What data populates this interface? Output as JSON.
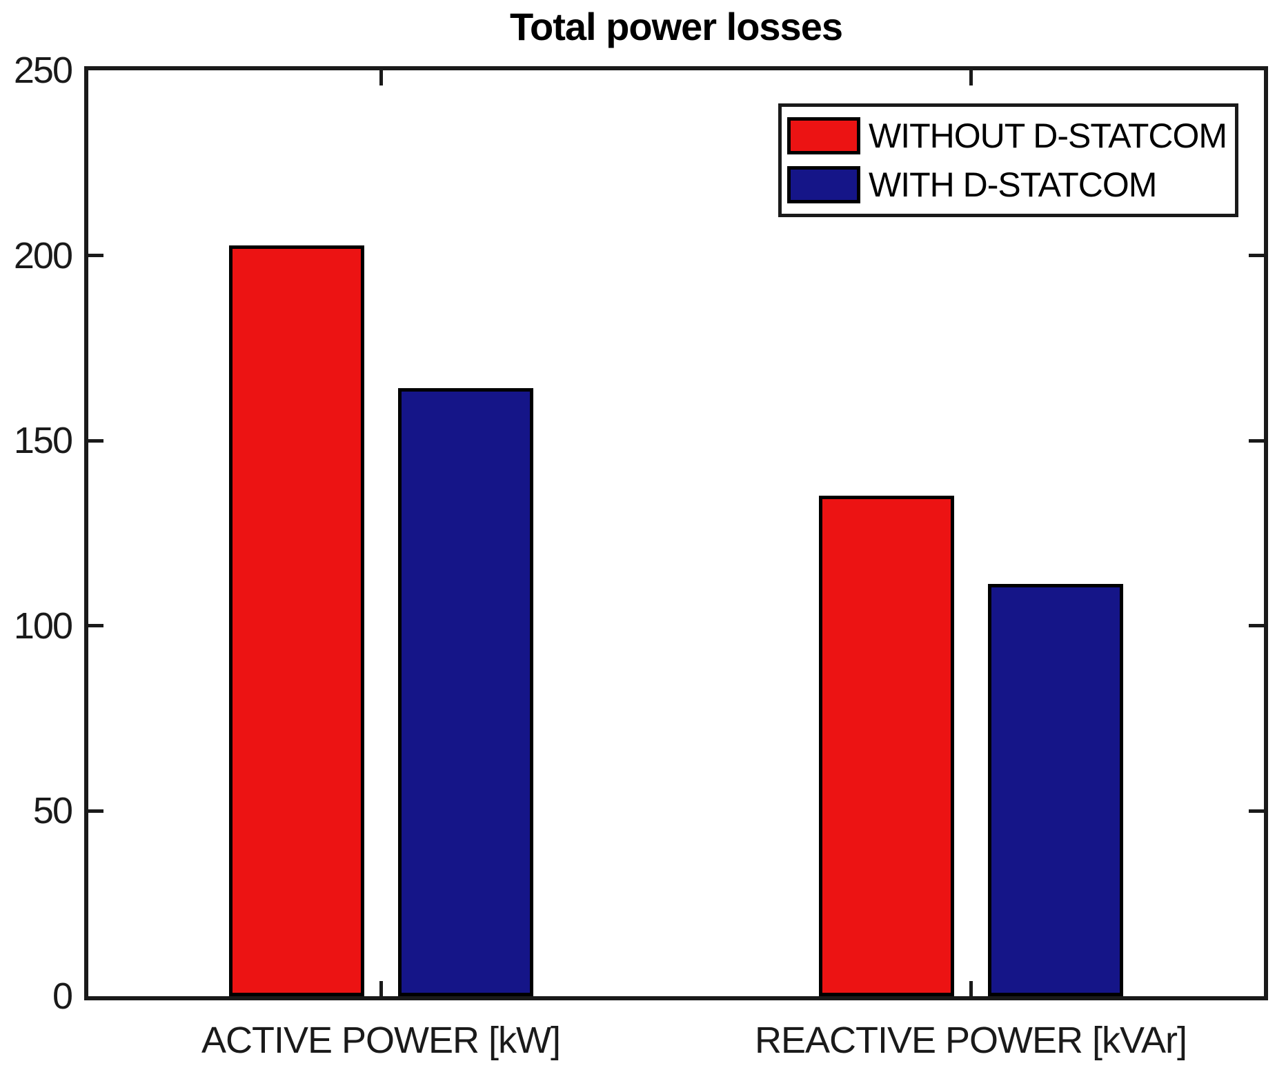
{
  "chart_data": {
    "type": "bar",
    "title": "Total power losses",
    "categories": [
      "ACTIVE POWER [kW]",
      "REACTIVE POWER [kVAr]"
    ],
    "series": [
      {
        "name": "WITHOUT D-STATCOM",
        "color": "#EC1313",
        "values": [
          202.7,
          135.1
        ]
      },
      {
        "name": "WITH D-STATCOM",
        "color": "#151588",
        "values": [
          164.2,
          111.4
        ]
      }
    ],
    "xlabel": "",
    "ylabel": "",
    "ylim": [
      0,
      250
    ],
    "yticks": [
      0,
      50,
      100,
      150,
      200,
      250
    ],
    "grid": false,
    "legend_position": "top-right",
    "background_color": "#ffffff",
    "axis_color": "#1a1a1a",
    "bar_edge_color": "#000000"
  }
}
